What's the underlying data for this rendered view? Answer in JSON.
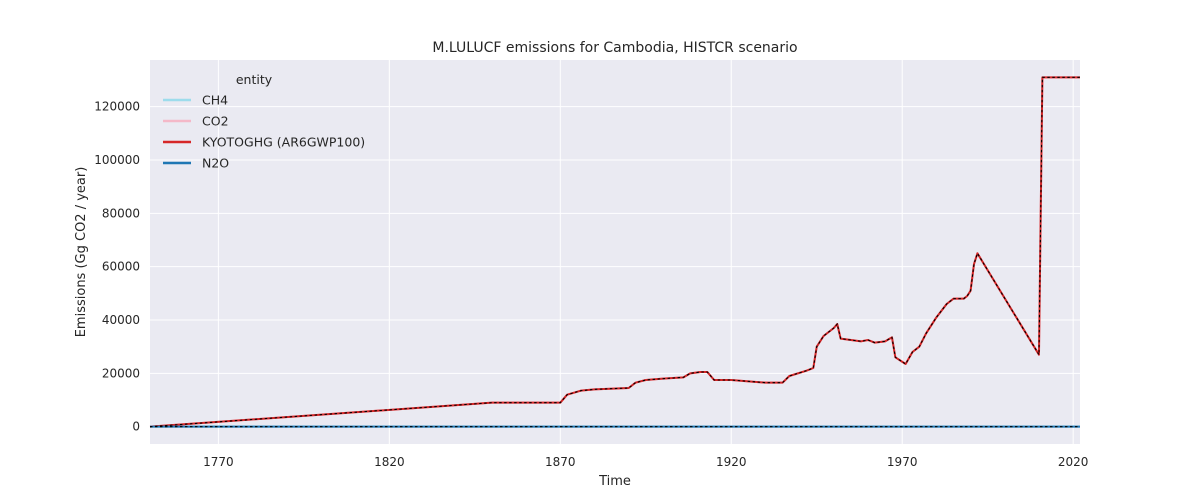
{
  "chart_data": {
    "type": "line",
    "title": "M.LULUCF emissions for Cambodia, HISTCR scenario",
    "xlabel": "Time",
    "ylabel": "Emissions (Gg CO2 / year)",
    "xlim": [
      1750,
      2022
    ],
    "ylim": [
      -6500,
      137500
    ],
    "x_ticks": [
      1770,
      1820,
      1870,
      1920,
      1970,
      2020
    ],
    "y_ticks": [
      0,
      20000,
      40000,
      60000,
      80000,
      100000,
      120000
    ],
    "grid": true,
    "background": "#eaeaf2",
    "legend": {
      "title": "entity",
      "placement": "top-left"
    },
    "series": [
      {
        "name": "CH4",
        "color": "#9ddcec",
        "x": [
          1750,
          2022
        ],
        "y": [
          0,
          0
        ]
      },
      {
        "name": "CO2",
        "color": "#f4b8c8",
        "x": [
          1750,
          1850,
          1870,
          1872,
          1876,
          1880,
          1890,
          1892,
          1895,
          1900,
          1906,
          1908,
          1911,
          1913,
          1915,
          1920,
          1925,
          1930,
          1935,
          1937,
          1942,
          1944,
          1945,
          1947,
          1950,
          1951,
          1952,
          1955,
          1958,
          1960,
          1962,
          1965,
          1967,
          1968,
          1971,
          1973,
          1975,
          1977,
          1979,
          1980,
          1983,
          1985,
          1988,
          1989,
          1990,
          1991,
          1992,
          2010,
          2011,
          2022
        ],
        "y": [
          0,
          9000,
          9000,
          12000,
          13500,
          14000,
          14500,
          16500,
          17500,
          18000,
          18500,
          20000,
          20500,
          20500,
          17500,
          17500,
          17000,
          16500,
          16500,
          19000,
          21000,
          22000,
          30000,
          34000,
          37000,
          38500,
          33000,
          32500,
          32000,
          32500,
          31500,
          32000,
          33500,
          26000,
          23500,
          28000,
          30000,
          35000,
          39000,
          41000,
          46000,
          48000,
          48000,
          49000,
          51000,
          61000,
          65000,
          27000,
          131000,
          131000
        ]
      },
      {
        "name": "KYOTOGHG (AR6GWP100)",
        "color": "#d62728",
        "x": [
          1750,
          1850,
          1870,
          1872,
          1876,
          1880,
          1890,
          1892,
          1895,
          1900,
          1906,
          1908,
          1911,
          1913,
          1915,
          1920,
          1925,
          1930,
          1935,
          1937,
          1942,
          1944,
          1945,
          1947,
          1950,
          1951,
          1952,
          1955,
          1958,
          1960,
          1962,
          1965,
          1967,
          1968,
          1971,
          1973,
          1975,
          1977,
          1979,
          1980,
          1983,
          1985,
          1988,
          1989,
          1990,
          1991,
          1992,
          2010,
          2011,
          2022
        ],
        "y": [
          0,
          9000,
          9000,
          12000,
          13500,
          14000,
          14500,
          16500,
          17500,
          18000,
          18500,
          20000,
          20500,
          20500,
          17500,
          17500,
          17000,
          16500,
          16500,
          19000,
          21000,
          22000,
          30000,
          34000,
          37000,
          38500,
          33000,
          32500,
          32000,
          32500,
          31500,
          32000,
          33500,
          26000,
          23500,
          28000,
          30000,
          35000,
          39000,
          41000,
          46000,
          48000,
          48000,
          49000,
          51000,
          61000,
          65000,
          27000,
          131000,
          131000
        ]
      },
      {
        "name": "N2O",
        "color": "#1f77b4",
        "x": [
          1750,
          2022
        ],
        "y": [
          0,
          0
        ]
      }
    ]
  }
}
